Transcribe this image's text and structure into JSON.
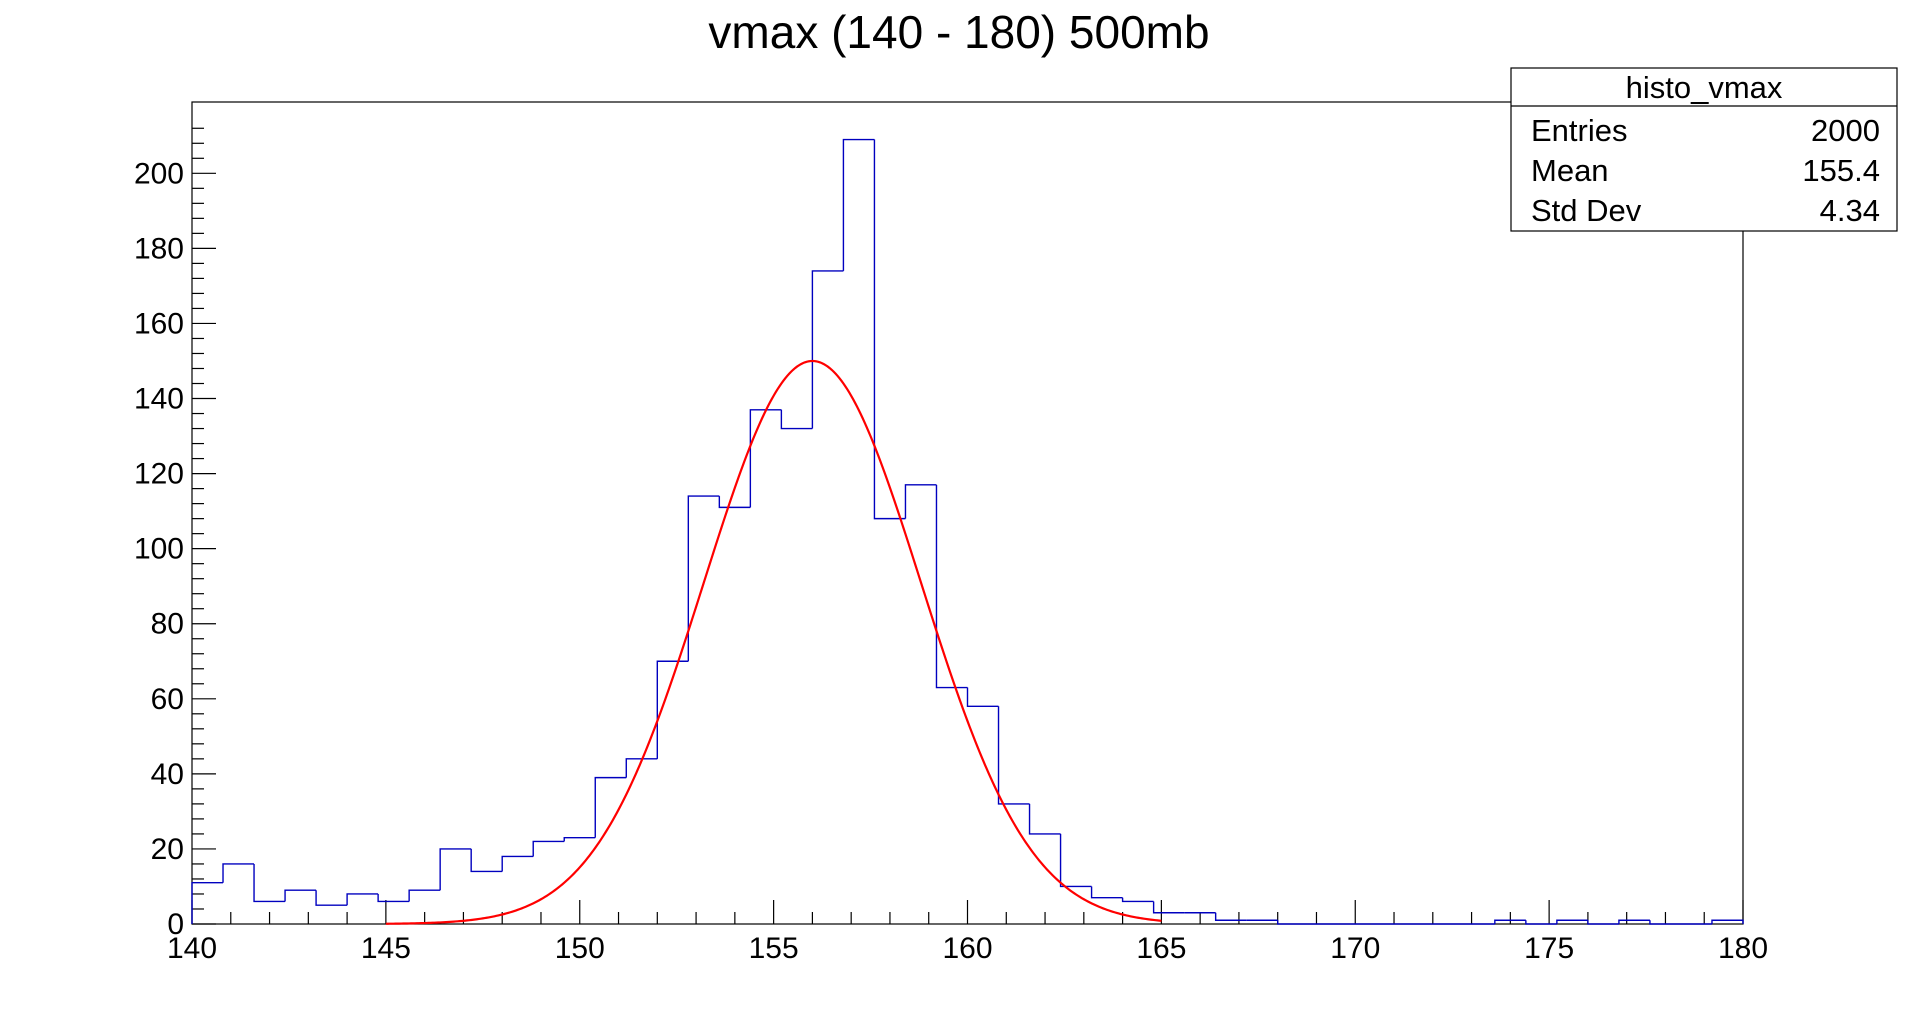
{
  "chart_data": {
    "type": "bar",
    "title": "vmax (140 - 180) 500mb",
    "xlabel": "",
    "ylabel": "",
    "xlim": [
      140,
      180
    ],
    "ylim": [
      0,
      219
    ],
    "x_ticks": [
      "140",
      "145",
      "150",
      "155",
      "160",
      "165",
      "170",
      "175",
      "180"
    ],
    "y_ticks": [
      "0",
      "20",
      "40",
      "60",
      "80",
      "100",
      "120",
      "140",
      "160",
      "180",
      "200"
    ],
    "grid": false,
    "legend": "top-right",
    "bin_width": 0.8,
    "bin_centers": [
      140.4,
      141.2,
      142.0,
      142.8,
      143.6,
      144.4,
      145.2,
      146.0,
      146.8,
      147.6,
      148.4,
      149.2,
      150.0,
      150.8,
      151.6,
      152.4,
      153.2,
      154.0,
      154.8,
      155.6,
      156.4,
      157.2,
      158.0,
      158.8,
      159.6,
      160.4,
      161.2,
      162.0,
      162.8,
      163.6,
      164.4,
      165.2,
      166.0,
      166.8,
      167.6,
      168.4,
      169.2,
      170.0,
      170.8,
      171.6,
      172.4,
      173.2,
      174.0,
      174.8,
      175.6,
      176.4,
      177.2,
      178.0,
      178.8,
      179.6
    ],
    "values": [
      11,
      16,
      6,
      9,
      5,
      8,
      6,
      9,
      20,
      14,
      18,
      22,
      23,
      39,
      44,
      70,
      114,
      111,
      137,
      132,
      174,
      209,
      108,
      117,
      63,
      58,
      32,
      24,
      10,
      7,
      6,
      3,
      3,
      1,
      1,
      0,
      0,
      0,
      0,
      0,
      0,
      0,
      1,
      0,
      1,
      0,
      1,
      0,
      0,
      1
    ],
    "series": [
      {
        "name": "histo_vmax",
        "color": "#0000bf",
        "style": "step"
      }
    ],
    "fit": {
      "type": "gaussian",
      "amplitude": 150,
      "mean": 156.0,
      "sigma": 2.8,
      "xrange": [
        145,
        165
      ],
      "color": "#ff0000"
    },
    "stats": {
      "title": "histo_vmax",
      "rows": [
        {
          "label": "Entries",
          "value": "2000"
        },
        {
          "label": "Mean",
          "value": "155.4"
        },
        {
          "label": "Std Dev",
          "value": "4.34"
        }
      ]
    }
  }
}
